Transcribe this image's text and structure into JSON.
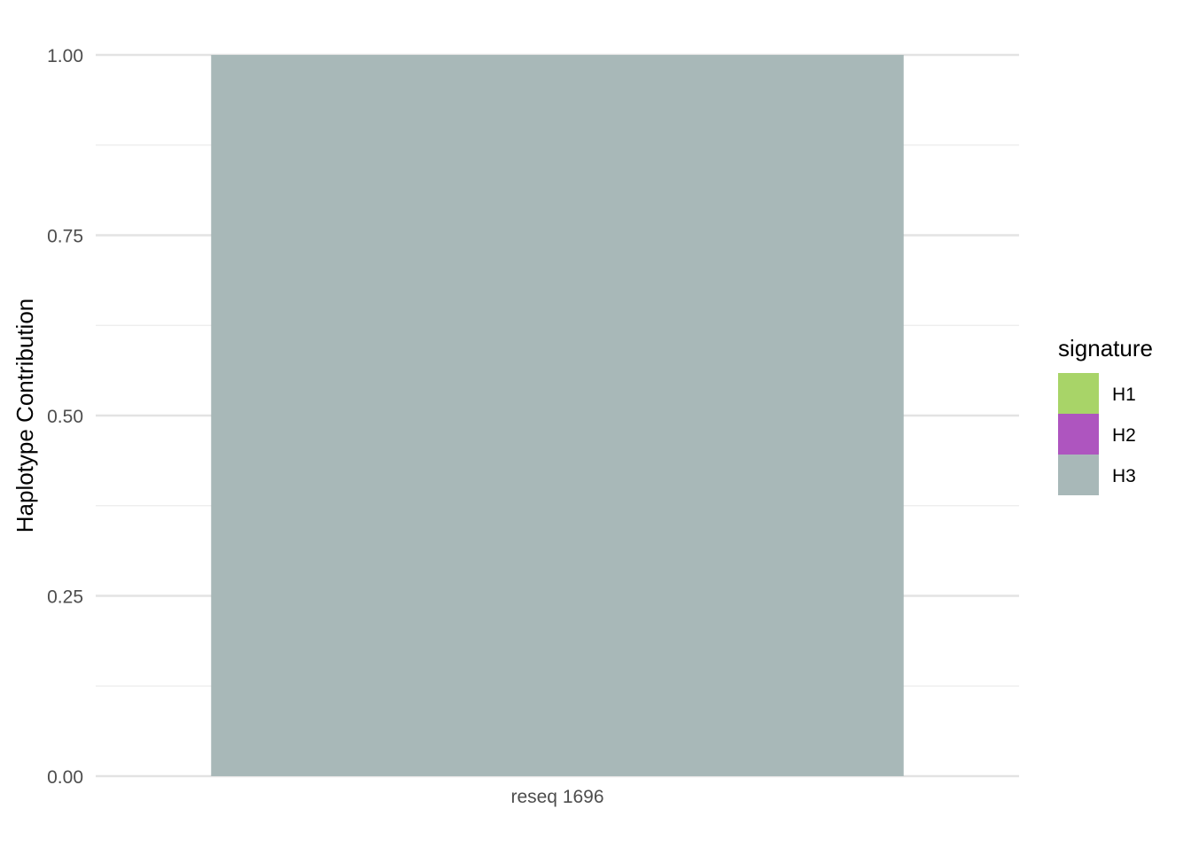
{
  "chart_data": {
    "type": "bar",
    "stacked": true,
    "xlabel": "",
    "ylabel": "Haplotype Contribution",
    "ylim": [
      0,
      1
    ],
    "yticks": [
      "0.00",
      "0.25",
      "0.50",
      "0.75",
      "1.00"
    ],
    "ytick_values": [
      0,
      0.25,
      0.5,
      0.75,
      1.0
    ],
    "y_minor_gridlines": [
      0.125,
      0.375,
      0.625,
      0.875
    ],
    "grid": true,
    "categories": [
      "reseq 1696"
    ],
    "series": [
      {
        "name": "H1",
        "color": "#A8D468",
        "values": [
          0
        ]
      },
      {
        "name": "H2",
        "color": "#AE55BF",
        "values": [
          0
        ]
      },
      {
        "name": "H3",
        "color": "#A8B8B8",
        "values": [
          1.0
        ]
      }
    ],
    "legend": {
      "title": "signature",
      "position": "right",
      "entries": [
        "H1",
        "H2",
        "H3"
      ]
    }
  }
}
